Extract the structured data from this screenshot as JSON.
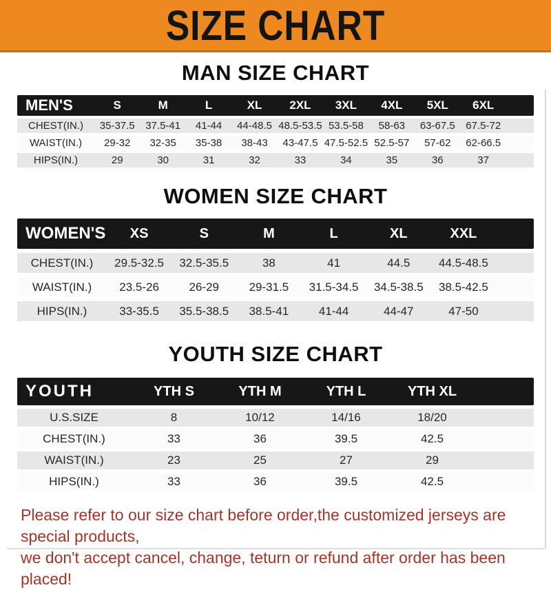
{
  "banner": {
    "title": "SIZE CHART"
  },
  "chart_data": [
    {
      "type": "table",
      "title": "MAN SIZE CHART",
      "header_label": "MEN'S",
      "columns": [
        "S",
        "M",
        "L",
        "XL",
        "2XL",
        "3XL",
        "4XL",
        "5XL",
        "6XL"
      ],
      "rows": [
        {
          "label": "CHEST(IN.)",
          "values": [
            "35-37.5",
            "37.5-41",
            "41-44",
            "44-48.5",
            "48.5-53.5",
            "53.5-58",
            "58-63",
            "63-67.5",
            "67.5-72"
          ]
        },
        {
          "label": "WAIST(IN.)",
          "values": [
            "29-32",
            "32-35",
            "35-38",
            "38-43",
            "43-47.5",
            "47.5-52.5",
            "52.5-57",
            "57-62",
            "62-66.5"
          ]
        },
        {
          "label": "HIPS(IN.)",
          "values": [
            "29",
            "30",
            "31",
            "32",
            "33",
            "34",
            "35",
            "36",
            "37"
          ]
        }
      ]
    },
    {
      "type": "table",
      "title": "WOMEN SIZE CHART",
      "header_label": "WOMEN'S",
      "columns": [
        "XS",
        "S",
        "M",
        "L",
        "XL",
        "XXL"
      ],
      "rows": [
        {
          "label": "CHEST(IN.)",
          "values": [
            "29.5-32.5",
            "32.5-35.5",
            "38",
            "41",
            "44.5",
            "44.5-48.5"
          ]
        },
        {
          "label": "WAIST(IN.)",
          "values": [
            "23.5-26",
            "26-29",
            "29-31.5",
            "31.5-34.5",
            "34.5-38.5",
            "38.5-42.5"
          ]
        },
        {
          "label": "HIPS(IN.)",
          "values": [
            "33-35.5",
            "35.5-38.5",
            "38.5-41",
            "41-44",
            "44-47",
            "47-50"
          ]
        }
      ]
    },
    {
      "type": "table",
      "title": "YOUTH SIZE CHART",
      "header_label": "YOUTH",
      "columns": [
        "YTH S",
        "YTH M",
        "YTH L",
        "YTH XL"
      ],
      "rows": [
        {
          "label": "U.S.SIZE",
          "values": [
            "8",
            "10/12",
            "14/16",
            "18/20"
          ]
        },
        {
          "label": "CHEST(IN.)",
          "values": [
            "33",
            "36",
            "39.5",
            "42.5"
          ]
        },
        {
          "label": "WAIST(IN.)",
          "values": [
            "23",
            "25",
            "27",
            "29"
          ]
        },
        {
          "label": "HIPS(IN.)",
          "values": [
            "33",
            "36",
            "39.5",
            "42.5"
          ]
        }
      ]
    }
  ],
  "footer": {
    "line1": "Please refer to our size chart before order,the customized jerseys are special products,",
    "line2": "we don't accept cancel, change, teturn or refund after order has been placed!"
  },
  "colors": {
    "banner_orange": "#EC8A21",
    "banner_edge": "#C4711B",
    "header_bar_black": "#171717",
    "row_gray": "#E7E7E7",
    "row_white": "#FBFBFB",
    "footer_red": "#A53328"
  }
}
